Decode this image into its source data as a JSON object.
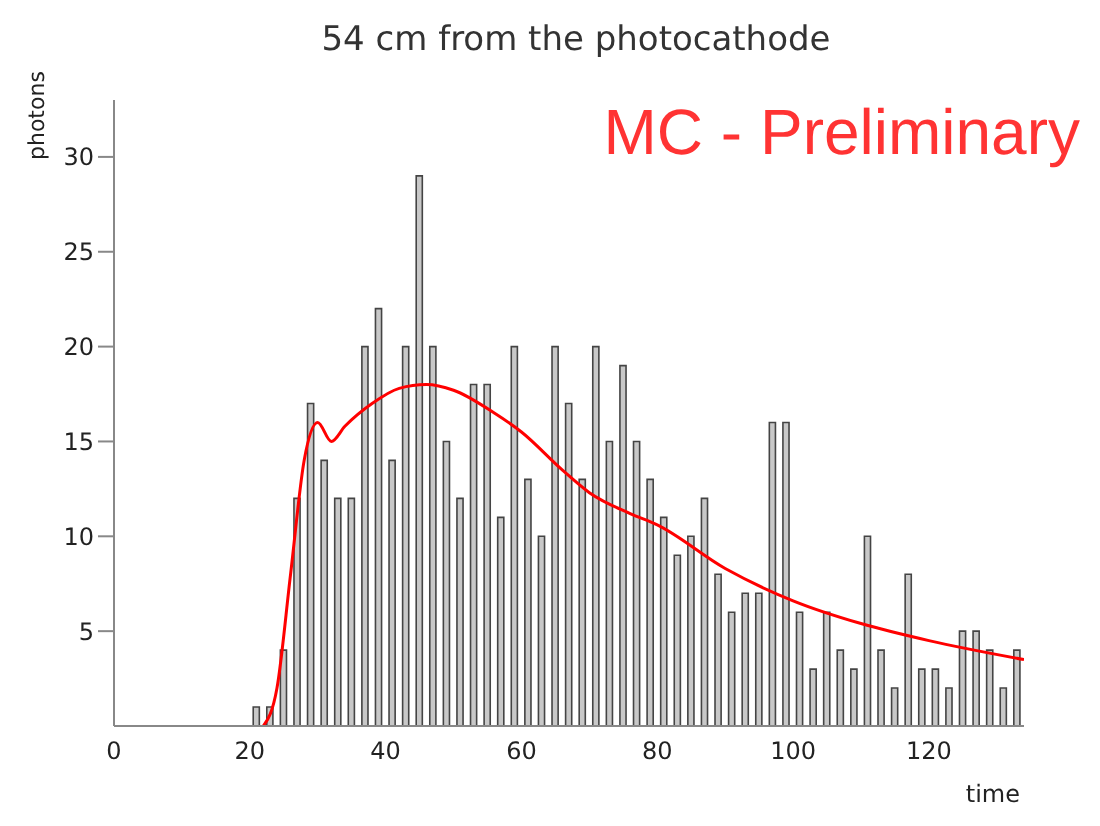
{
  "chart_data": {
    "type": "histogram",
    "title": "54 cm from the photocathode",
    "xlabel": "time",
    "ylabel": "photons",
    "annotations": [
      "MC - Preliminary"
    ],
    "bins": [
      20,
      22,
      24,
      26,
      28,
      30,
      32,
      34,
      36,
      38,
      40,
      42,
      44,
      46,
      48,
      50,
      52,
      54,
      56,
      58,
      60,
      62,
      64,
      66,
      68,
      70,
      72,
      74,
      76,
      78,
      80,
      82,
      84,
      86,
      88,
      90,
      92,
      94,
      96,
      98,
      100,
      102,
      104,
      106,
      108,
      110,
      112,
      114,
      116,
      118,
      120,
      122,
      124,
      126,
      128,
      130,
      132,
      134
    ],
    "values": [
      1,
      1,
      4,
      12,
      17,
      14,
      12,
      12,
      20,
      22,
      14,
      20,
      29,
      20,
      15,
      12,
      18,
      18,
      11,
      20,
      13,
      10,
      20,
      17,
      13,
      20,
      15,
      19,
      15,
      13,
      11,
      9,
      10,
      12,
      8,
      6,
      7,
      7,
      16,
      16,
      6,
      3,
      6,
      4,
      3,
      10,
      4,
      2,
      8,
      3,
      3,
      2,
      5,
      5,
      4,
      2,
      4
    ],
    "color": "#c8c8c8",
    "series": [
      {
        "type": "line",
        "color": "#ff0000",
        "x": [
          22,
          24,
          26,
          28,
          30,
          32,
          34,
          38,
          42,
          46,
          50,
          56,
          60,
          66,
          70,
          76,
          80,
          90,
          100,
          110,
          120,
          134
        ],
        "values": [
          0,
          2,
          8,
          14,
          16,
          15,
          15.8,
          17,
          17.8,
          18,
          17.7,
          16.5,
          15.5,
          13.5,
          12.3,
          11.2,
          10.6,
          8.3,
          6.6,
          5.4,
          4.5,
          3.5
        ]
      }
    ],
    "xlim": [
      0,
      134
    ],
    "xticks": [
      0,
      20,
      40,
      60,
      80,
      100,
      120
    ],
    "ylim": [
      0,
      33
    ],
    "yticks": [
      5,
      10,
      15,
      20,
      25,
      30
    ]
  }
}
